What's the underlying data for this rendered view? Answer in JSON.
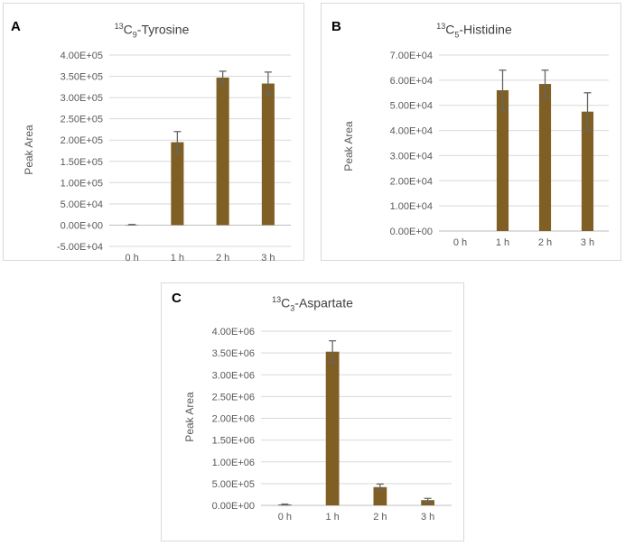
{
  "colors": {
    "bar": "#7f5f24",
    "error": "#666666",
    "grid": "#d9d9d9",
    "axis": "#bfbfbf"
  },
  "panels": [
    {
      "letter": "A",
      "title_sup": "13",
      "title_base": "C",
      "title_sub": "9",
      "title_rest": "-Tyrosine"
    },
    {
      "letter": "B",
      "title_sup": "13",
      "title_base": "C",
      "title_sub": "5",
      "title_rest": "-Histidine"
    },
    {
      "letter": "C",
      "title_sup": "13",
      "title_base": "C",
      "title_sub": "3",
      "title_rest": "-Aspartate"
    }
  ],
  "chart_data": [
    {
      "type": "bar",
      "title": "13C9-Tyrosine",
      "ylabel": "Peak Area",
      "xlabel": "",
      "categories": [
        "0 h",
        "1 h",
        "2 h",
        "3 h"
      ],
      "values": [
        1000,
        195000,
        347000,
        333000
      ],
      "errors": [
        500,
        25000,
        15000,
        27000
      ],
      "ylim": [
        -50000,
        400000
      ],
      "yticks": [
        -50000,
        0,
        50000,
        100000,
        150000,
        200000,
        250000,
        300000,
        350000,
        400000
      ],
      "ytick_labels": [
        "-5.00E+04",
        "0.00E+00",
        "5.00E+04",
        "1.00E+05",
        "1.50E+05",
        "2.00E+05",
        "2.50E+05",
        "3.00E+05",
        "3.50E+05",
        "4.00E+05"
      ]
    },
    {
      "type": "bar",
      "title": "13C5-Histidine",
      "ylabel": "Peak Area",
      "xlabel": "",
      "categories": [
        "0 h",
        "1 h",
        "2 h",
        "3 h"
      ],
      "values": [
        0,
        56000,
        58500,
        47500
      ],
      "errors": [
        0,
        8000,
        5500,
        7500
      ],
      "ylim": [
        0,
        70000
      ],
      "yticks": [
        0,
        10000,
        20000,
        30000,
        40000,
        50000,
        60000,
        70000
      ],
      "ytick_labels": [
        "0.00E+00",
        "1.00E+04",
        "2.00E+04",
        "3.00E+04",
        "4.00E+04",
        "5.00E+04",
        "6.00E+04",
        "7.00E+04"
      ]
    },
    {
      "type": "bar",
      "title": "13C3-Aspartate",
      "ylabel": "Peak Area",
      "xlabel": "",
      "categories": [
        "0 h",
        "1 h",
        "2 h",
        "3 h"
      ],
      "values": [
        20000,
        3530000,
        420000,
        120000
      ],
      "errors": [
        10000,
        250000,
        70000,
        40000
      ],
      "ylim": [
        0,
        4000000
      ],
      "yticks": [
        0,
        500000,
        1000000,
        1500000,
        2000000,
        2500000,
        3000000,
        3500000,
        4000000
      ],
      "ytick_labels": [
        "0.00E+00",
        "5.00E+05",
        "1.00E+06",
        "1.50E+06",
        "2.00E+06",
        "2.50E+06",
        "3.00E+06",
        "3.50E+06",
        "4.00E+06"
      ]
    }
  ]
}
